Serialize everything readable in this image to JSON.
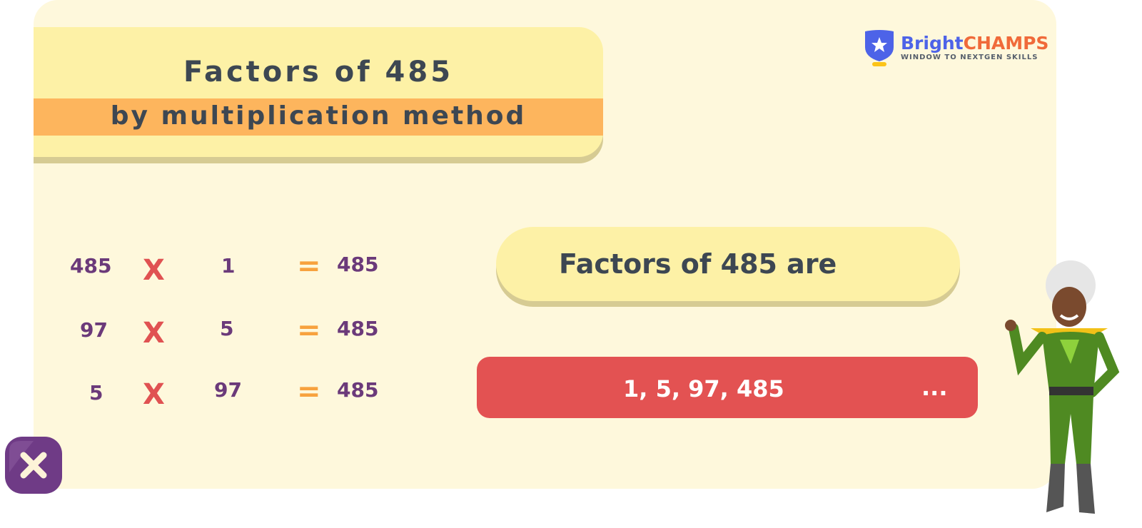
{
  "title": {
    "line1": "Factors of  485",
    "line2": "by multiplication method"
  },
  "logo": {
    "brand_part1": "Bright",
    "brand_part2": "CHAMPS",
    "tagline": "WINDOW TO NEXTGEN SKILLS"
  },
  "equations": [
    {
      "a": "485",
      "op": "X",
      "b": "1",
      "eq": "=",
      "result": "485"
    },
    {
      "a": "97",
      "op": "X",
      "b": "5",
      "eq": "=",
      "result": "485"
    },
    {
      "a": "5",
      "op": "X",
      "b": "97",
      "eq": "=",
      "result": "485"
    }
  ],
  "summary": {
    "label": "Factors of 485 are",
    "factors": "1, 5, 97, 485",
    "ellipsis": "..."
  },
  "colors": {
    "background": "#fef8dc",
    "title_band": "#fdb55d",
    "result_bar": "#e35252",
    "number": "#6b3a7a",
    "times": "#e05252",
    "equals": "#f7a23e"
  },
  "icons": {
    "close": "close-x-icon",
    "logo": "shield-star-icon"
  }
}
